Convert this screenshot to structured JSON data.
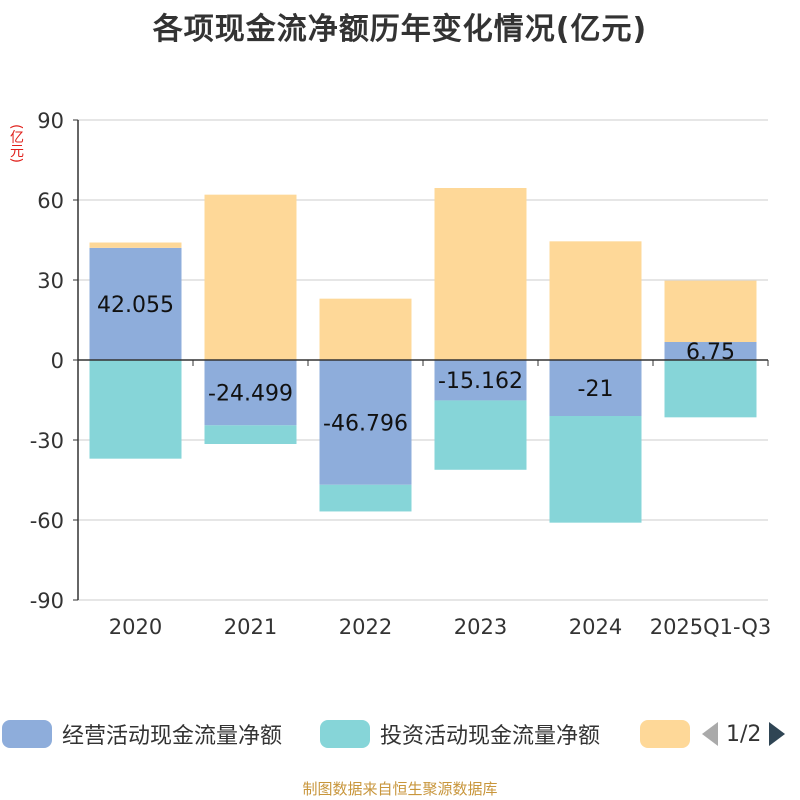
{
  "page": {
    "title": "各项现金流净额历年变化情况(亿元)",
    "unit_label": "(亿元)",
    "source": "制图数据来自恒生聚源数据库"
  },
  "legend": {
    "items": [
      {
        "label": "经营活动现金流量净额",
        "color": "#8eaddb"
      },
      {
        "label": "投资活动现金流量净额",
        "color": "#86d5d8"
      },
      {
        "label": "",
        "color": "#fed898"
      }
    ],
    "page_indicator": "1/2"
  },
  "chart_data": {
    "type": "bar",
    "stacked": true,
    "title": "各项现金流净额历年变化情况(亿元)",
    "ylabel": "(亿元)",
    "ylim": [
      -90,
      90
    ],
    "yticks": [
      90,
      60,
      30,
      0,
      -30,
      -60,
      -90
    ],
    "categories": [
      "2020",
      "2021",
      "2022",
      "2023",
      "2024",
      "2025Q1-Q3"
    ],
    "series": [
      {
        "name": "经营活动现金流量净额",
        "color": "#8eaddb",
        "values": [
          42.055,
          -24.499,
          -46.796,
          -15.162,
          -21,
          6.75
        ],
        "labels": [
          "42.055",
          "-24.499",
          "-46.796",
          "-15.162",
          "-21",
          "6.75"
        ]
      },
      {
        "name": "投资活动现金流量净额",
        "color": "#86d5d8",
        "values": [
          -37,
          -7,
          -10,
          -26,
          -40,
          -21.5
        ]
      },
      {
        "name": "",
        "color": "#fed898",
        "values": [
          2,
          62,
          23,
          64.5,
          44.5,
          23
        ]
      }
    ],
    "grid": true
  }
}
